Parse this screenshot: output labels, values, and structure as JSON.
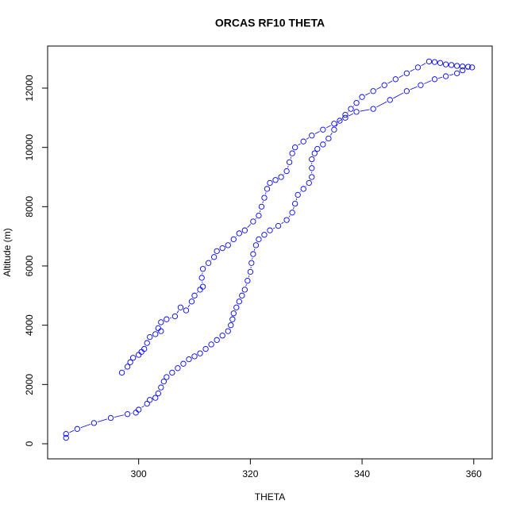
{
  "chart_data": {
    "type": "scatter",
    "title": "ORCAS RF10 THETA",
    "x_label": "THETA",
    "y_label": "Altitude (m)",
    "color": "#0000ff",
    "x": [
      287,
      287,
      289,
      292,
      295,
      298,
      299.5,
      300,
      301.5,
      302,
      303,
      303.5,
      304,
      304.5,
      305,
      306,
      307,
      308,
      309,
      310,
      311,
      312,
      313,
      314,
      315,
      316,
      316.5,
      316.8,
      317,
      317.5,
      318,
      318.5,
      319,
      319.5,
      320,
      320.2,
      320.5,
      321,
      321.5,
      322.5,
      323.5,
      325,
      326.5,
      327.5,
      328,
      328.5,
      329.5,
      330.5,
      331,
      331,
      331,
      331.5,
      332,
      333,
      334,
      335,
      336,
      337,
      338,
      339,
      340,
      342,
      344,
      346,
      348,
      350,
      352,
      353,
      354,
      355,
      356,
      357,
      358,
      359,
      359.7,
      358,
      357,
      355,
      353,
      350.5,
      348,
      345,
      342,
      339,
      337,
      335,
      333,
      331,
      329.5,
      328,
      327.5,
      327,
      326.5,
      325.5,
      324.5,
      323.5,
      323,
      322.5,
      322,
      321.5,
      320.5,
      319,
      318,
      317,
      316,
      315,
      314,
      313.5,
      312.5,
      311.5,
      311.3,
      311.5,
      311,
      310,
      309.5,
      308.5,
      307.5,
      306.5,
      305,
      304,
      303.5,
      304,
      303,
      302,
      301.5,
      301,
      300.5,
      300,
      299,
      298.5,
      298,
      297
    ],
    "values": [
      200,
      330,
      500,
      700,
      870,
      1000,
      1050,
      1150,
      1350,
      1480,
      1550,
      1700,
      1900,
      2100,
      2250,
      2400,
      2550,
      2700,
      2850,
      2950,
      3050,
      3200,
      3350,
      3500,
      3650,
      3800,
      4000,
      4200,
      4400,
      4600,
      4800,
      5000,
      5200,
      5500,
      5800,
      6100,
      6400,
      6700,
      6900,
      7050,
      7200,
      7350,
      7550,
      7800,
      8100,
      8400,
      8600,
      8800,
      9000,
      9300,
      9600,
      9800,
      9950,
      10100,
      10300,
      10600,
      10900,
      11100,
      11300,
      11500,
      11700,
      11900,
      12100,
      12300,
      12500,
      12700,
      12900,
      12880,
      12850,
      12800,
      12780,
      12750,
      12730,
      12720,
      12700,
      12600,
      12500,
      12400,
      12300,
      12100,
      11900,
      11600,
      11300,
      11200,
      11000,
      10800,
      10600,
      10400,
      10200,
      10000,
      9800,
      9500,
      9200,
      9000,
      8900,
      8800,
      8600,
      8300,
      8000,
      7700,
      7500,
      7200,
      7100,
      6900,
      6700,
      6600,
      6500,
      6300,
      6100,
      5900,
      5600,
      5300,
      5200,
      5000,
      4800,
      4500,
      4600,
      4300,
      4200,
      4100,
      3900,
      3800,
      3700,
      3600,
      3400,
      3200,
      3100,
      3000,
      2900,
      2750,
      2600,
      2400
    ],
    "xlim": [
      283.7,
      363.3
    ],
    "ylim": [
      -509,
      13420
    ],
    "xticks": [
      300,
      320,
      340,
      360
    ],
    "yticks": [
      0,
      2000,
      4000,
      6000,
      8000,
      10000,
      12000
    ]
  }
}
